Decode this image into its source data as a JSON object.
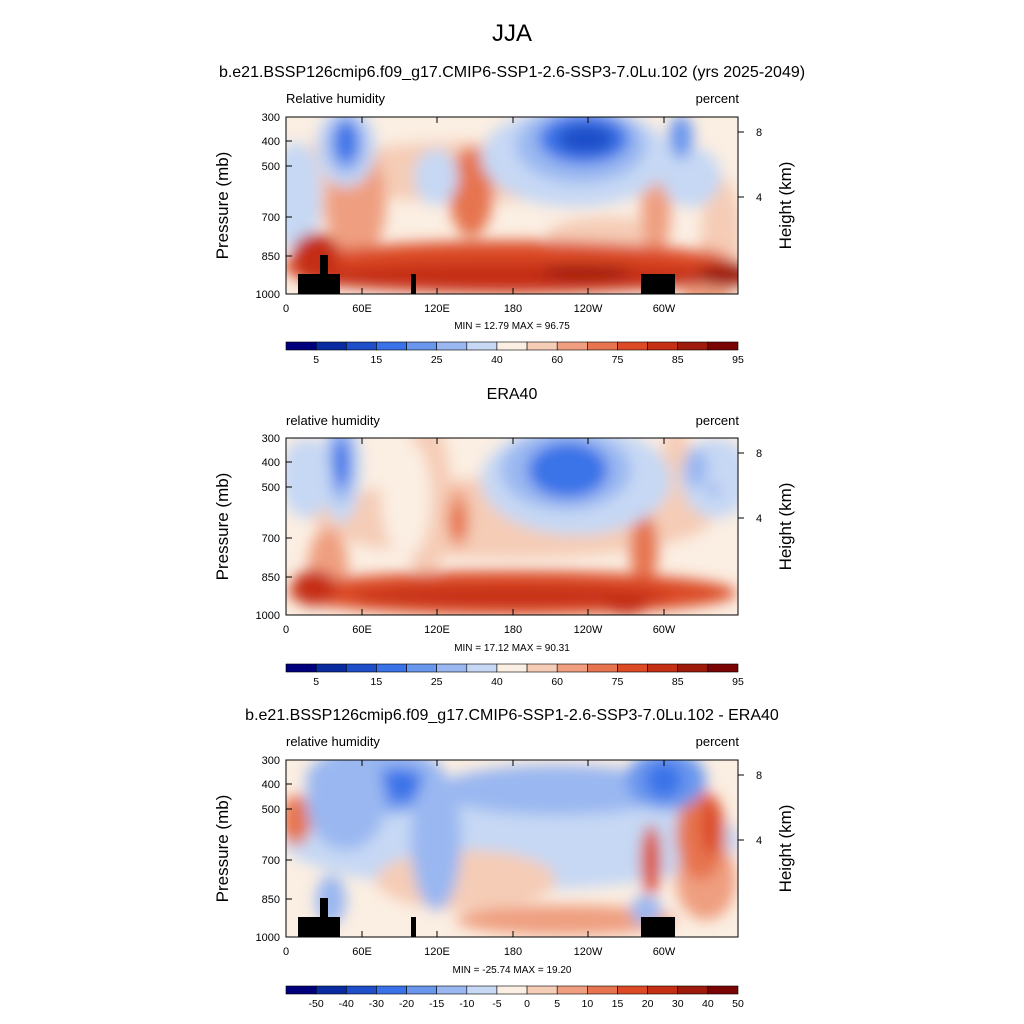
{
  "figure": {
    "title": "JJA",
    "colors": {
      "cmap": [
        "#00007d",
        "#0a2ba0",
        "#1e4ec8",
        "#3a73e8",
        "#6a97ee",
        "#9ab7f1",
        "#c6d8f4",
        "#fbeee2",
        "#f5ccb6",
        "#ef9f80",
        "#e6744f",
        "#dc4b25",
        "#c52f14",
        "#9e1a0a",
        "#7a0403"
      ],
      "land": "#000000"
    }
  },
  "chart_data": [
    {
      "type": "heatmap",
      "title": "b.e21.BSSP126cmip6.f09_g17.CMIP6-SSP1-2.6-SSP3-7.0Lu.102 (yrs 2025-2049)",
      "left_label": "Relative humidity",
      "right_label": "percent",
      "ylabel": "Pressure (mb)",
      "y2label": "Height (km)",
      "xticks": [
        "0",
        "60E",
        "120E",
        "180",
        "120W",
        "60W"
      ],
      "yticks": [
        "300",
        "400",
        "500",
        "700",
        "850",
        "1000"
      ],
      "y2ticks": [
        "8",
        "4"
      ],
      "stats": "MIN =  12.79  MAX =  96.75",
      "colorbar_labels": [
        "5",
        "15",
        "25",
        "40",
        "60",
        "75",
        "85",
        "95"
      ],
      "levels": [
        5,
        10,
        15,
        20,
        25,
        30,
        40,
        50,
        60,
        70,
        75,
        80,
        85,
        90,
        95
      ],
      "has_land_mask": true
    },
    {
      "type": "heatmap",
      "title": "ERA40",
      "left_label": "relative humidity",
      "right_label": "percent",
      "ylabel": "Pressure (mb)",
      "y2label": "Height (km)",
      "xticks": [
        "0",
        "60E",
        "120E",
        "180",
        "120W",
        "60W"
      ],
      "yticks": [
        "300",
        "400",
        "500",
        "700",
        "850",
        "1000"
      ],
      "y2ticks": [
        "8",
        "4"
      ],
      "stats": "MIN =  17.12  MAX =  90.31",
      "colorbar_labels": [
        "5",
        "15",
        "25",
        "40",
        "60",
        "75",
        "85",
        "95"
      ],
      "levels": [
        5,
        10,
        15,
        20,
        25,
        30,
        40,
        50,
        60,
        70,
        75,
        80,
        85,
        90,
        95
      ],
      "has_land_mask": false
    },
    {
      "type": "heatmap",
      "title": "b.e21.BSSP126cmip6.f09_g17.CMIP6-SSP1-2.6-SSP3-7.0Lu.102 - ERA40",
      "left_label": "relative humidity",
      "right_label": "percent",
      "ylabel": "Pressure (mb)",
      "y2label": "Height (km)",
      "xticks": [
        "0",
        "60E",
        "120E",
        "180",
        "120W",
        "60W"
      ],
      "yticks": [
        "300",
        "400",
        "500",
        "700",
        "850",
        "1000"
      ],
      "y2ticks": [
        "8",
        "4"
      ],
      "stats": "MIN = -25.74  MAX =  19.20",
      "colorbar_labels": [
        "-50",
        "-40",
        "-30",
        "-20",
        "-15",
        "-10",
        "-5",
        "0",
        "5",
        "10",
        "15",
        "20",
        "30",
        "40",
        "50"
      ],
      "levels": [
        -50,
        -40,
        -30,
        -20,
        -15,
        -10,
        -5,
        0,
        5,
        10,
        15,
        20,
        30,
        40,
        50
      ],
      "has_land_mask": true
    }
  ]
}
